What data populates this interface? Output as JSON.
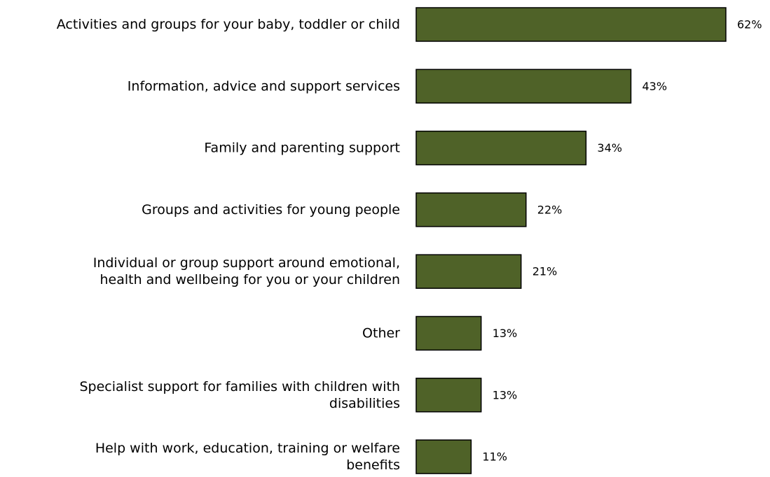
{
  "chart_data": {
    "type": "bar",
    "orientation": "horizontal",
    "categories": [
      [
        "Activities and groups for your baby, toddler or child"
      ],
      [
        "Information, advice and support services"
      ],
      [
        "Family and parenting support"
      ],
      [
        "Groups and activities for young people"
      ],
      [
        "Individual or group support around emotional,",
        "health and wellbeing for you or your children"
      ],
      [
        "Other"
      ],
      [
        "Specialist support for families with children with",
        "disabilities"
      ],
      [
        "Help with work, education, training or welfare",
        "benefits"
      ]
    ],
    "values": [
      62,
      43,
      34,
      22,
      21,
      13,
      13,
      11
    ],
    "value_labels": [
      "62%",
      "43%",
      "34%",
      "22%",
      "21%",
      "13%",
      "13%",
      "11%"
    ],
    "unit": "%",
    "xlim": [
      0,
      62
    ],
    "grid": false,
    "legend": "none",
    "bar_color": "#4f6228",
    "bar_outline": "#000000"
  }
}
